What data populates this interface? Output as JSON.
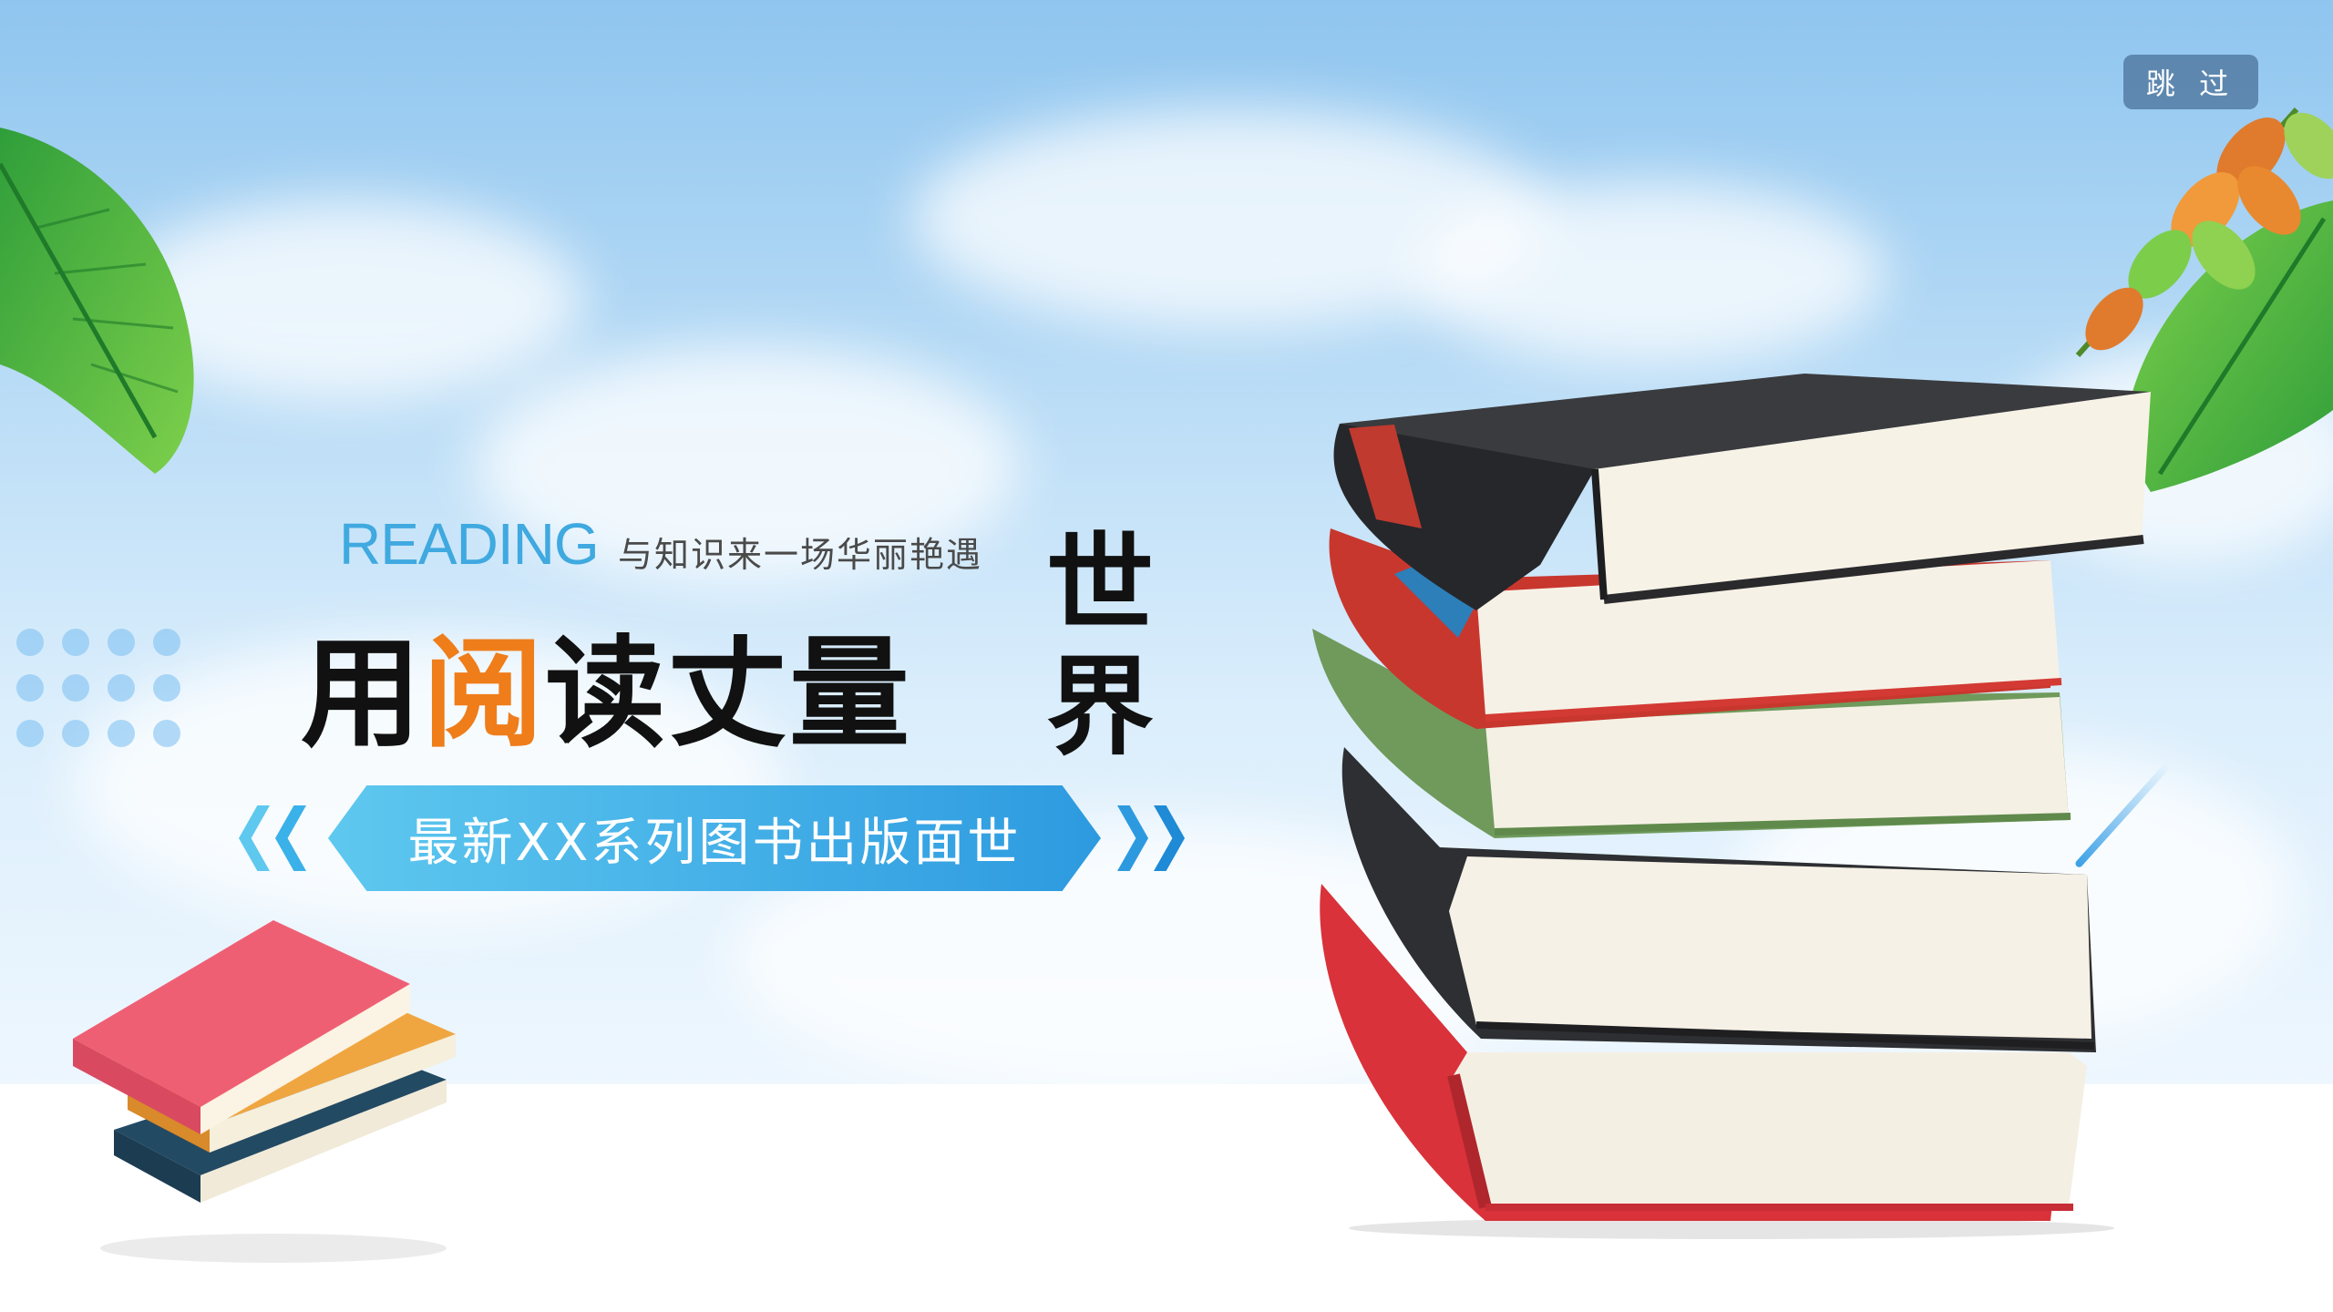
{
  "header": {
    "skip_label": "跳 过"
  },
  "hero": {
    "reading_word": "READING",
    "tagline": "与知识来一场华丽艳遇",
    "headline_pre": "用",
    "headline_accent": "阅",
    "headline_post": "读丈量",
    "side_char_top": "世",
    "side_char_bottom": "界",
    "banner_text": "最新XX系列图书出版面世"
  },
  "colors": {
    "accent_orange": "#ef7d1a",
    "reading_blue": "#3fa9e0",
    "banner_start": "#5ec8ef",
    "banner_end": "#2d9ae0",
    "sky_top": "#8fc5ef"
  },
  "icons": {
    "left_chevrons": "double-chevron-left-icon",
    "right_chevrons": "double-chevron-right-icon"
  }
}
